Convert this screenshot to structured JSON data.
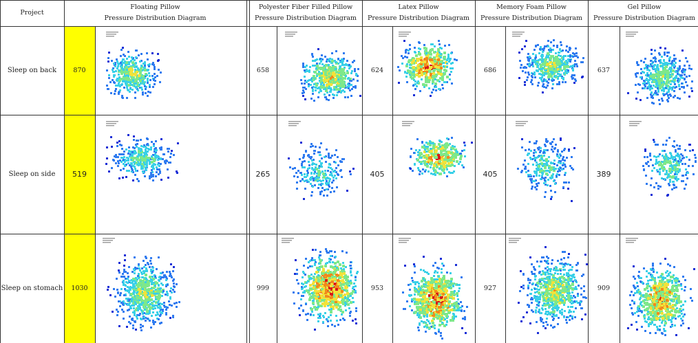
{
  "header": {
    "project_label": "Project",
    "columns": [
      {
        "name": "Floating Pillow",
        "sub": "Pressure Distribution Diagram"
      },
      {
        "name": "Polyester Fiber Filled Pillow",
        "sub": "Pressure Distribution Diagram"
      },
      {
        "name": "Latex Pillow",
        "sub": "Pressure Distribution Diagram"
      },
      {
        "name": "Memory Foam Pillow",
        "sub": "Pressure Distribution Diagram"
      },
      {
        "name": "Gel Pillow",
        "sub": "Pressure Distribution Diagram"
      }
    ]
  },
  "rows": [
    {
      "label": "Sleep on back",
      "values": [
        "870",
        "658",
        "624",
        "686",
        "637"
      ]
    },
    {
      "label": "Sleep on side",
      "values": [
        "519",
        "265",
        "405",
        "405",
        "389"
      ]
    },
    {
      "label": "Sleep on stomach",
      "values": [
        "1030",
        "999",
        "953",
        "927",
        "909"
      ]
    }
  ],
  "colors": {
    "highlight": "#ffff00",
    "grid_line": "#333333",
    "pressure_scale": [
      "#1a2fd6",
      "#2f7bf0",
      "#39d0e8",
      "#7ee88a",
      "#f2e23a",
      "#f08a1c",
      "#d61a1a"
    ]
  }
}
